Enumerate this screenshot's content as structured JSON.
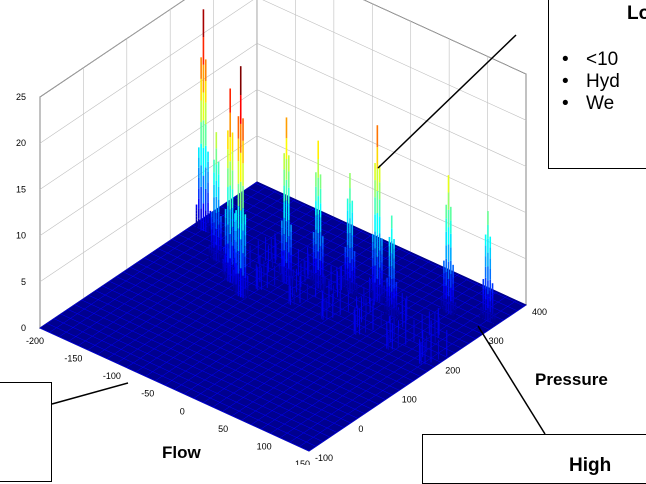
{
  "chart_data": {
    "type": "surface",
    "xlabel": "Flow",
    "ylabel": "Pressure",
    "zlabel": "",
    "x_ticks": [
      "-200",
      "-150",
      "-100",
      "-50",
      "0",
      "50",
      "100",
      "150"
    ],
    "y_ticks": [
      "-100",
      "0",
      "100",
      "200",
      "300",
      "400"
    ],
    "z_ticks": [
      "0",
      "5",
      "10",
      "15",
      "20",
      "25"
    ],
    "xlim": [
      -200,
      150
    ],
    "ylim": [
      -100,
      400
    ],
    "zlim": [
      0,
      25
    ],
    "grid": true,
    "colormap": "jet",
    "peaks": [
      {
        "flow": -185,
        "pressure": 250,
        "z": 24
      },
      {
        "flow": -140,
        "pressure": 200,
        "z": 14
      },
      {
        "flow": -105,
        "pressure": 170,
        "z": 21
      },
      {
        "flow": -80,
        "pressure": 150,
        "z": 25
      },
      {
        "flow": -60,
        "pressure": 220,
        "z": 18
      },
      {
        "flow": -30,
        "pressure": 240,
        "z": 16
      },
      {
        "flow": 0,
        "pressure": 260,
        "z": 13
      },
      {
        "flow": 30,
        "pressure": 270,
        "z": 19
      },
      {
        "flow": 60,
        "pressure": 250,
        "z": 11
      },
      {
        "flow": 100,
        "pressure": 310,
        "z": 15
      },
      {
        "flow": 140,
        "pressure": 330,
        "z": 12
      }
    ]
  },
  "callouts": {
    "top": {
      "title": "Lo",
      "bullets": [
        "<10",
        "Hyd",
        "We"
      ]
    },
    "bottom_right": {
      "title": "High"
    },
    "bottom_left": {
      "title": ""
    }
  },
  "colors": {
    "base": "#00008f",
    "low": "#0000ff",
    "mid": "#00ffff",
    "high": "#ffff00",
    "peak": "#ff0000",
    "grid": "#bfbfbf"
  }
}
